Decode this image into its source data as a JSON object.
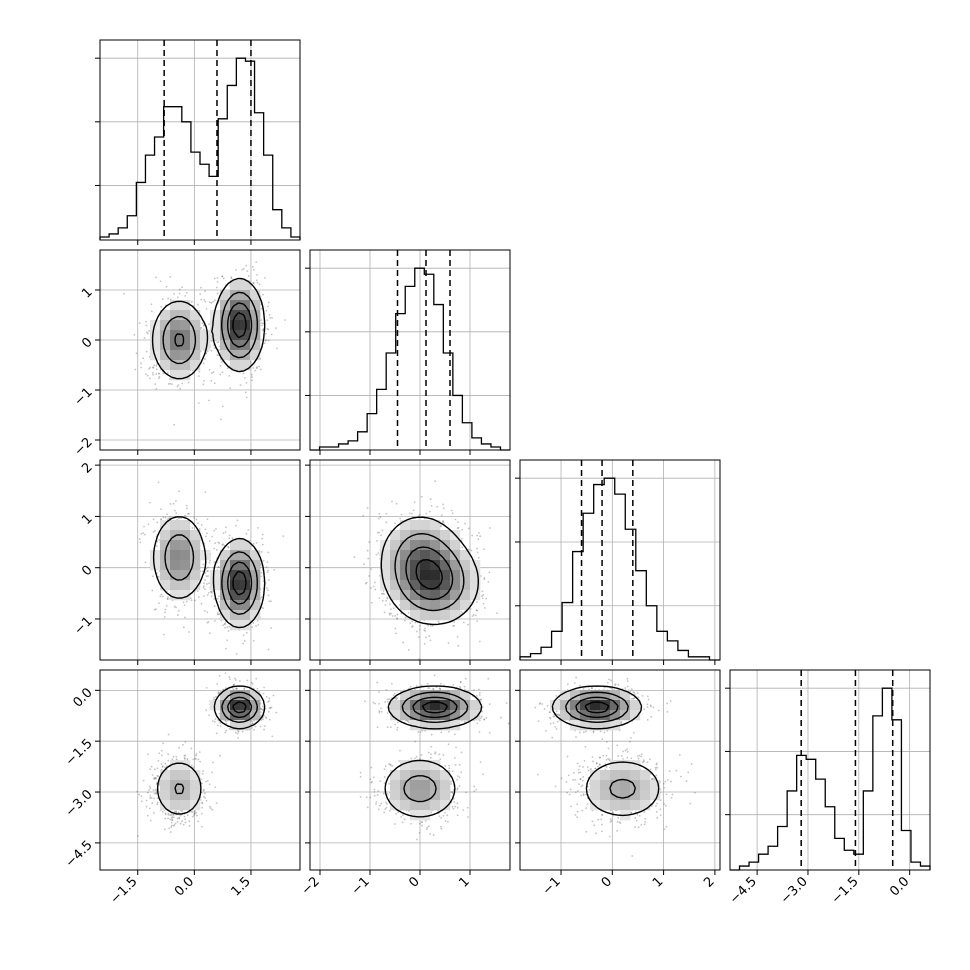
{
  "chart_data": {
    "type": "corner",
    "grid": true,
    "colors": {
      "hist": "#000000",
      "contour": "#000000",
      "scatter": "#555555",
      "grid": "#b0b0b0"
    },
    "axis_ranges": [
      [
        -2.5,
        2.8
      ],
      [
        -2.2,
        1.8
      ],
      [
        -1.8,
        2.1
      ],
      [
        -5.3,
        0.6
      ]
    ],
    "ticks": [
      {
        "values": [
          -1.5,
          0.0,
          1.5
        ],
        "labels": [
          "−1.5",
          "0.0",
          "1.5"
        ]
      },
      {
        "values": [
          -2,
          -1,
          0,
          1
        ],
        "labels": [
          "−2",
          "−1",
          "0",
          "1"
        ]
      },
      {
        "values": [
          -1,
          0,
          1,
          2
        ],
        "labels": [
          "−1",
          "0",
          "1",
          "2"
        ]
      },
      {
        "values": [
          -4.5,
          -3.0,
          -1.5,
          0.0
        ],
        "labels": [
          "−4.5",
          "−3.0",
          "−1.5",
          "0.0"
        ]
      }
    ],
    "row_ticks": [
      null,
      {
        "values": [
          -2,
          -1,
          0,
          1
        ],
        "labels": [
          "−2",
          "−1",
          "0",
          "1"
        ]
      },
      {
        "values": [
          -1,
          0,
          1,
          2
        ],
        "labels": [
          "−1",
          "0",
          "1",
          "2"
        ]
      },
      {
        "values": [
          -4.5,
          -3.0,
          -1.5,
          0.0
        ],
        "labels": [
          "−4.5",
          "−3.0",
          "−1.5",
          "0.0"
        ]
      }
    ],
    "quantiles": [
      [
        -0.8,
        0.6,
        1.5
      ],
      [
        -0.45,
        0.12,
        0.6
      ],
      [
        -0.6,
        -0.2,
        0.4
      ],
      [
        -3.2,
        -1.6,
        -0.5
      ]
    ],
    "histograms": [
      {
        "bins": [
          -2.5,
          2.8
        ],
        "counts": [
          1,
          2,
          4,
          8,
          19,
          28,
          34,
          44,
          44,
          39,
          29,
          25,
          21,
          40,
          51,
          60,
          59,
          42,
          28,
          10,
          4,
          1
        ]
      },
      {
        "bins": [
          -2.2,
          1.8
        ],
        "counts": [
          0,
          1,
          1,
          2,
          3,
          6,
          12,
          20,
          32,
          45,
          54,
          60,
          58,
          48,
          32,
          18,
          9,
          4,
          2,
          1,
          0
        ]
      },
      {
        "bins": [
          -1.8,
          2.1
        ],
        "counts": [
          1,
          2,
          4,
          9,
          18,
          34,
          46,
          55,
          57,
          52,
          41,
          28,
          17,
          9,
          6,
          3,
          1,
          1,
          0
        ]
      },
      {
        "bins": [
          -5.3,
          0.6
        ],
        "counts": [
          0,
          1,
          2,
          4,
          6,
          11,
          20,
          29,
          28,
          23,
          16,
          8,
          5,
          4,
          20,
          39,
          46,
          38,
          10,
          2,
          1
        ]
      }
    ],
    "components": {
      "weights": [
        0.42,
        0.58
      ],
      "means": [
        [
          -0.4,
          0.0,
          0.2,
          -2.9
        ],
        [
          1.2,
          0.3,
          -0.3,
          -0.5
        ]
      ],
      "sds": [
        [
          0.38,
          0.42,
          0.45,
          0.5
        ],
        [
          0.32,
          0.45,
          0.42,
          0.3
        ]
      ]
    }
  }
}
